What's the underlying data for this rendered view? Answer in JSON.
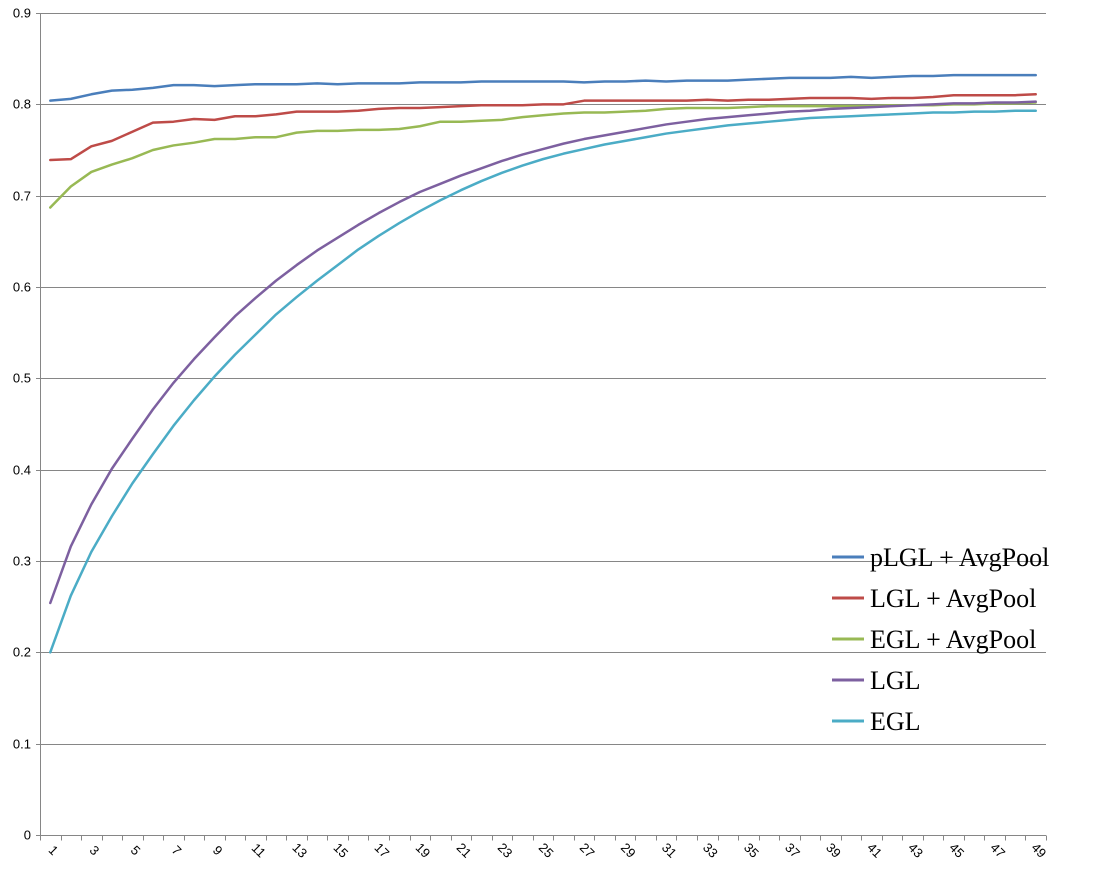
{
  "chart_data": {
    "type": "line",
    "title": "",
    "xlabel": "",
    "ylabel": "",
    "x": [
      1,
      2,
      3,
      4,
      5,
      6,
      7,
      8,
      9,
      10,
      11,
      12,
      13,
      14,
      15,
      16,
      17,
      18,
      19,
      20,
      21,
      22,
      23,
      24,
      25,
      26,
      27,
      28,
      29,
      30,
      31,
      32,
      33,
      34,
      35,
      36,
      37,
      38,
      39,
      40,
      41,
      42,
      43,
      44,
      45,
      46,
      47,
      48,
      49
    ],
    "x_tick_labels": [
      "1",
      "3",
      "5",
      "7",
      "9",
      "11",
      "13",
      "15",
      "17",
      "19",
      "21",
      "23",
      "25",
      "27",
      "29",
      "31",
      "33",
      "35",
      "37",
      "39",
      "41",
      "43",
      "45",
      "47",
      "49"
    ],
    "ylim": [
      0,
      0.9
    ],
    "y_ticks": [
      "0",
      "0.1",
      "0.2",
      "0.3",
      "0.4",
      "0.5",
      "0.6",
      "0.7",
      "0.8",
      "0.9"
    ],
    "grid": true,
    "legend_position": "right",
    "series": [
      {
        "name": "pLGL + AvgPool",
        "color": "#4A7EBB",
        "values": [
          0.804,
          0.806,
          0.811,
          0.815,
          0.816,
          0.818,
          0.821,
          0.821,
          0.82,
          0.821,
          0.822,
          0.822,
          0.822,
          0.823,
          0.822,
          0.823,
          0.823,
          0.823,
          0.824,
          0.824,
          0.824,
          0.825,
          0.825,
          0.825,
          0.825,
          0.825,
          0.824,
          0.825,
          0.825,
          0.826,
          0.825,
          0.826,
          0.826,
          0.826,
          0.827,
          0.828,
          0.829,
          0.829,
          0.829,
          0.83,
          0.829,
          0.83,
          0.831,
          0.831,
          0.832,
          0.832,
          0.832,
          0.832,
          0.832
        ]
      },
      {
        "name": "LGL + AvgPool",
        "color": "#BE4B48",
        "values": [
          0.739,
          0.74,
          0.754,
          0.76,
          0.77,
          0.78,
          0.781,
          0.784,
          0.783,
          0.787,
          0.787,
          0.789,
          0.792,
          0.792,
          0.792,
          0.793,
          0.795,
          0.796,
          0.796,
          0.797,
          0.798,
          0.799,
          0.799,
          0.799,
          0.8,
          0.8,
          0.804,
          0.804,
          0.804,
          0.804,
          0.804,
          0.804,
          0.805,
          0.804,
          0.805,
          0.805,
          0.806,
          0.807,
          0.807,
          0.807,
          0.806,
          0.807,
          0.807,
          0.808,
          0.81,
          0.81,
          0.81,
          0.81,
          0.811
        ]
      },
      {
        "name": "EGL + AvgPool",
        "color": "#98B954",
        "values": [
          0.687,
          0.71,
          0.726,
          0.734,
          0.741,
          0.75,
          0.755,
          0.758,
          0.762,
          0.762,
          0.764,
          0.764,
          0.769,
          0.771,
          0.771,
          0.772,
          0.772,
          0.773,
          0.776,
          0.781,
          0.781,
          0.782,
          0.783,
          0.786,
          0.788,
          0.79,
          0.791,
          0.791,
          0.792,
          0.793,
          0.795,
          0.796,
          0.796,
          0.796,
          0.797,
          0.798,
          0.798,
          0.798,
          0.798,
          0.798,
          0.798,
          0.799,
          0.799,
          0.799,
          0.8,
          0.8,
          0.801,
          0.801,
          0.802
        ]
      },
      {
        "name": "LGL",
        "color": "#7D60A0",
        "values": [
          0.254,
          0.316,
          0.362,
          0.401,
          0.434,
          0.466,
          0.495,
          0.521,
          0.545,
          0.568,
          0.588,
          0.607,
          0.624,
          0.64,
          0.654,
          0.668,
          0.681,
          0.693,
          0.704,
          0.713,
          0.722,
          0.73,
          0.738,
          0.745,
          0.751,
          0.757,
          0.762,
          0.766,
          0.77,
          0.774,
          0.778,
          0.781,
          0.784,
          0.786,
          0.788,
          0.79,
          0.792,
          0.793,
          0.795,
          0.796,
          0.797,
          0.798,
          0.799,
          0.8,
          0.801,
          0.801,
          0.802,
          0.802,
          0.803
        ]
      },
      {
        "name": "EGL",
        "color": "#4BACC6",
        "values": [
          0.2,
          0.262,
          0.31,
          0.349,
          0.385,
          0.417,
          0.448,
          0.476,
          0.502,
          0.526,
          0.548,
          0.57,
          0.589,
          0.607,
          0.624,
          0.641,
          0.656,
          0.67,
          0.683,
          0.695,
          0.706,
          0.716,
          0.725,
          0.733,
          0.74,
          0.746,
          0.751,
          0.756,
          0.76,
          0.764,
          0.768,
          0.771,
          0.774,
          0.777,
          0.779,
          0.781,
          0.783,
          0.785,
          0.786,
          0.787,
          0.788,
          0.789,
          0.79,
          0.791,
          0.791,
          0.792,
          0.792,
          0.793,
          0.793
        ]
      }
    ]
  }
}
